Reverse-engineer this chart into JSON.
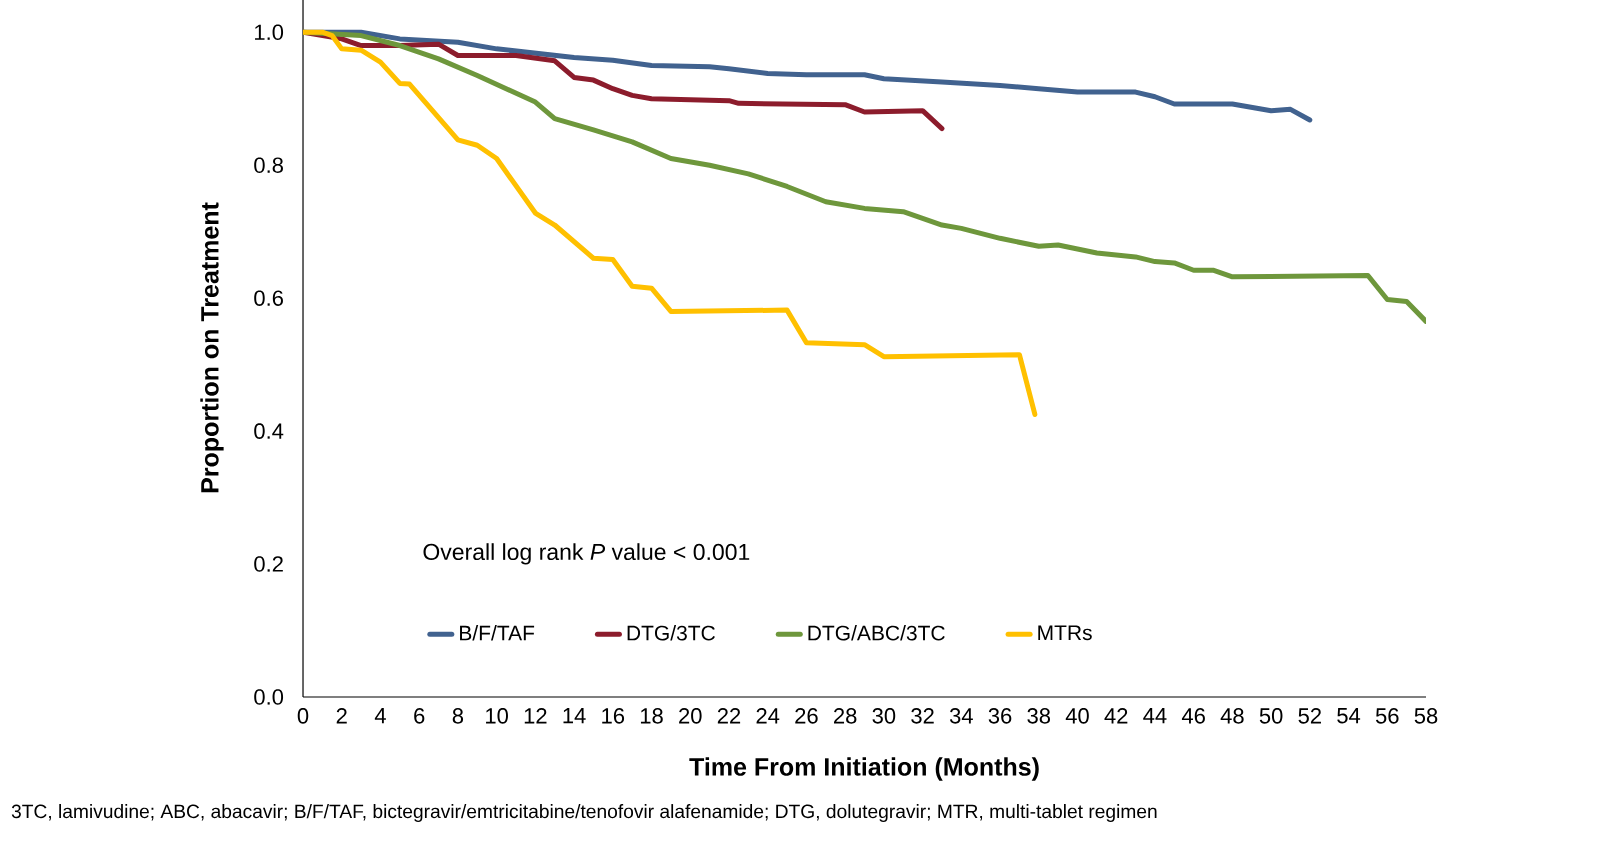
{
  "chart_data": {
    "type": "line",
    "xlabel": "Time From Initiation (Months)",
    "ylabel": "Proportion on Treatment",
    "xlim": [
      0,
      58
    ],
    "ylim": [
      0,
      1.05
    ],
    "xticks": [
      0,
      2,
      4,
      6,
      8,
      10,
      12,
      14,
      16,
      18,
      20,
      22,
      24,
      26,
      28,
      30,
      32,
      34,
      36,
      38,
      40,
      42,
      44,
      46,
      48,
      50,
      52,
      54,
      56,
      58
    ],
    "yticks": [
      {
        "value": 0,
        "label": "0.0"
      },
      {
        "value": 0.2,
        "label": "0.2"
      },
      {
        "value": 0.4,
        "label": "0.4"
      },
      {
        "value": 0.6,
        "label": "0.6"
      },
      {
        "value": 0.8,
        "label": "0.8"
      },
      {
        "value": 1,
        "label": "1.0"
      }
    ],
    "grid": false,
    "legend": "bottom",
    "marker": "none",
    "line_style": "solid",
    "annotations": [
      "Overall log rank *P* value < 0.001",
      "3TC, lamivudine; ABC, abacavir; B/F/TAF, bictegravir/emtricitabine/tenofovir alafenamide; DTG, dolutegravir; MTR, multi-tablet regimen"
    ],
    "series": [
      {
        "name": "B/F/TAF",
        "color": "#41628f",
        "x": [
          0,
          3,
          5,
          8,
          10,
          14,
          16,
          18,
          21,
          22,
          24,
          26,
          29,
          30,
          33,
          36,
          38,
          40,
          43,
          44,
          45,
          48,
          50,
          51,
          52
        ],
        "values": [
          1.0,
          1.0,
          0.99,
          0.985,
          0.975,
          0.962,
          0.958,
          0.95,
          0.948,
          0.945,
          0.938,
          0.936,
          0.936,
          0.93,
          0.925,
          0.92,
          0.915,
          0.91,
          0.91,
          0.903,
          0.892,
          0.892,
          0.882,
          0.884,
          0.868
        ]
      },
      {
        "name": "DTG/3TC",
        "color": "#8c1c2c",
        "x": [
          0,
          2,
          3,
          5,
          7,
          8,
          11,
          13,
          14,
          15,
          16,
          17,
          18,
          22,
          22.5,
          28,
          29,
          32,
          33
        ],
        "values": [
          1.0,
          0.99,
          0.98,
          0.98,
          0.982,
          0.965,
          0.965,
          0.957,
          0.932,
          0.928,
          0.915,
          0.905,
          0.9,
          0.897,
          0.893,
          0.891,
          0.88,
          0.882,
          0.855
        ]
      },
      {
        "name": "DTG/ABC/3TC",
        "color": "#6e973c",
        "x": [
          0,
          3,
          5,
          7,
          9,
          12,
          13,
          15,
          17,
          19,
          21,
          23,
          25,
          27,
          29,
          31,
          33,
          34,
          36,
          38,
          39,
          41,
          43,
          44,
          45,
          46,
          47,
          48,
          55,
          56,
          57,
          58
        ],
        "values": [
          1.0,
          0.995,
          0.98,
          0.96,
          0.935,
          0.895,
          0.87,
          0.853,
          0.835,
          0.81,
          0.8,
          0.787,
          0.768,
          0.745,
          0.735,
          0.73,
          0.71,
          0.705,
          0.69,
          0.678,
          0.68,
          0.668,
          0.662,
          0.655,
          0.653,
          0.642,
          0.642,
          0.632,
          0.634,
          0.598,
          0.595,
          0.565
        ]
      },
      {
        "name": "MTRs",
        "color": "#ffc000",
        "x": [
          0,
          1,
          1.5,
          2,
          3,
          4,
          5,
          5.5,
          8,
          9,
          10,
          12,
          13,
          15,
          16,
          17,
          18,
          19,
          25,
          26,
          29,
          30,
          37,
          37.8
        ],
        "values": [
          1.0,
          1.0,
          0.995,
          0.975,
          0.973,
          0.955,
          0.923,
          0.922,
          0.838,
          0.83,
          0.81,
          0.728,
          0.71,
          0.66,
          0.658,
          0.618,
          0.615,
          0.58,
          0.582,
          0.533,
          0.53,
          0.512,
          0.515,
          0.425
        ]
      }
    ]
  }
}
